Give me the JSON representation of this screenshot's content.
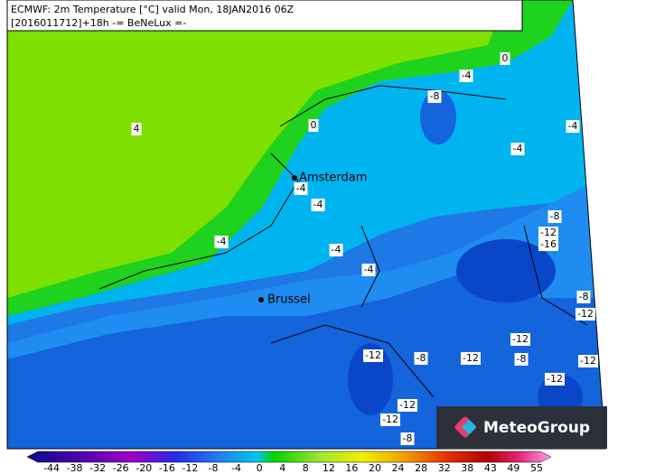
{
  "header": {
    "line1": "ECMWF: 2m Temperature [°C] valid Mon, 18JAN2016 06Z",
    "line2": "[2016011712]+18h -= BeNeLux =-"
  },
  "cities": [
    "Amsterdam",
    "Brussel"
  ],
  "contour_labels": [
    0,
    -4,
    -8,
    4,
    0,
    -4,
    -4,
    -4,
    -4,
    -8,
    -12,
    -16,
    -4,
    -4,
    -4,
    -8,
    -12,
    -12,
    -8,
    -12,
    -12,
    -8,
    -12,
    -12,
    -12,
    -12,
    -8
  ],
  "colorbar_ticks": [
    -44,
    -38,
    -32,
    -26,
    -20,
    -16,
    -12,
    -8,
    -4,
    0,
    4,
    8,
    12,
    16,
    20,
    24,
    28,
    32,
    38,
    43,
    49,
    55
  ],
  "logo": "MeteoGroup"
}
